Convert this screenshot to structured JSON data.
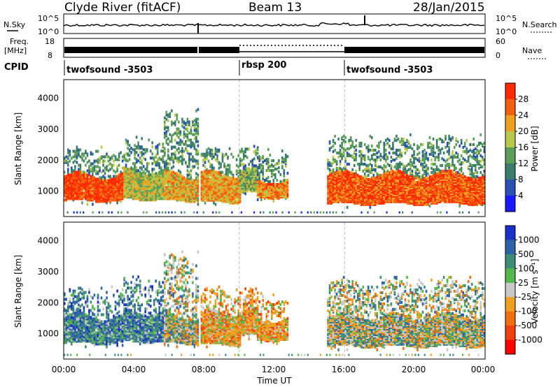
{
  "header": {
    "station": "Clyde River (fitACF)",
    "beam": "Beam 13",
    "date": "28/Jan/2015"
  },
  "noise_panel": {
    "left_label": "N.Sky",
    "right_label": "N.Search",
    "left_ticks": [
      "10^5",
      "10^0"
    ],
    "right_ticks": [
      "10^5",
      "10^0"
    ]
  },
  "freq_panel": {
    "left_label_1": "Freq.",
    "left_label_2": "[MHz]",
    "left_ticks": [
      "18",
      "8"
    ],
    "right_ticks": [
      "60",
      "0"
    ],
    "right_label": "Nave"
  },
  "cpid": {
    "label": "CPID",
    "segments": [
      {
        "name": "twofsound -3503",
        "start_h": 0,
        "end_h": 10
      },
      {
        "name": "rbsp 200",
        "start_h": 10,
        "end_h": 16
      },
      {
        "name": "twofsound -3503",
        "start_h": 16,
        "end_h": 24
      }
    ]
  },
  "chart_data": [
    {
      "type": "heatmap",
      "title": "",
      "ylabel": "Slant Range [km]",
      "yticks": [
        "1000",
        "2000",
        "3000",
        "4000"
      ],
      "ylim": [
        180,
        4600
      ],
      "xlim": [
        0,
        24
      ],
      "colorbar": {
        "label": "Power [dB]",
        "ticks": [
          "4",
          "8",
          "12",
          "16",
          "20",
          "24",
          "28"
        ],
        "colors": [
          "#1a1aff",
          "#2a52b5",
          "#3a7d6a",
          "#5a9e5a",
          "#b8c84a",
          "#f0a020",
          "#f06010",
          "#ff2a00"
        ]
      },
      "scatter_regions": [
        {
          "start_h": 0.0,
          "end_h": 3.4,
          "core_km": [
            650,
            1450
          ],
          "halo_km": [
            1450,
            2200
          ],
          "level": 0.9
        },
        {
          "start_h": 3.4,
          "end_h": 5.7,
          "core_km": [
            700,
            1600
          ],
          "halo_km": [
            1600,
            2500
          ],
          "level": 0.55
        },
        {
          "start_h": 5.7,
          "end_h": 7.6,
          "core_km": [
            650,
            1500
          ],
          "halo_km": [
            1500,
            3400
          ],
          "level": 0.65
        },
        {
          "start_h": 7.8,
          "end_h": 10.0,
          "core_km": [
            600,
            1500
          ],
          "halo_km": [
            1500,
            2200
          ],
          "level": 0.7
        },
        {
          "start_h": 10.0,
          "end_h": 11.0,
          "core_km": [
            900,
            1600
          ],
          "halo_km": [
            1600,
            2300
          ],
          "level": 0.5
        },
        {
          "start_h": 11.0,
          "end_h": 12.7,
          "core_km": [
            750,
            1300
          ],
          "halo_km": [
            1300,
            2100
          ],
          "level": 0.75
        },
        {
          "start_h": 15.0,
          "end_h": 24.0,
          "core_km": [
            550,
            1500
          ],
          "halo_km": [
            1500,
            2600
          ],
          "level": 0.85
        }
      ]
    },
    {
      "type": "heatmap",
      "title": "",
      "xlabel": "Time UT",
      "ylabel": "Slant Range [km]",
      "yticks": [
        "1000",
        "2000",
        "3000",
        "4000"
      ],
      "xticks": [
        "00:00",
        "04:00",
        "08:00",
        "12:00",
        "16:00",
        "20:00",
        "00:00"
      ],
      "ylim": [
        180,
        4600
      ],
      "xlim": [
        0,
        24
      ],
      "colorbar": {
        "label": "Velocity [m s⁻¹]",
        "ticks": [
          "1000",
          "500",
          "100",
          "25",
          "-25",
          "-100",
          "-500",
          "-1000"
        ],
        "colors": [
          "#1a30c8",
          "#2f63a8",
          "#3f8c78",
          "#55b84a",
          "#c8c8c8",
          "#f0a020",
          "#f07010",
          "#f04010",
          "#ff0000"
        ]
      },
      "scatter_regions": [
        {
          "start_h": 0.0,
          "end_h": 3.4,
          "core_km": [
            650,
            1500
          ],
          "halo_km": [
            1500,
            2300
          ],
          "bias": "towards"
        },
        {
          "start_h": 3.4,
          "end_h": 5.7,
          "core_km": [
            700,
            1650
          ],
          "halo_km": [
            1650,
            2600
          ],
          "bias": "towards"
        },
        {
          "start_h": 5.7,
          "end_h": 7.6,
          "core_km": [
            650,
            1500
          ],
          "halo_km": [
            1500,
            3400
          ],
          "bias": "mixed"
        },
        {
          "start_h": 7.8,
          "end_h": 10.0,
          "core_km": [
            600,
            1600
          ],
          "halo_km": [
            1600,
            2300
          ],
          "bias": "away"
        },
        {
          "start_h": 10.0,
          "end_h": 11.0,
          "core_km": [
            900,
            1650
          ],
          "halo_km": [
            1650,
            2300
          ],
          "bias": "away"
        },
        {
          "start_h": 11.0,
          "end_h": 12.7,
          "core_km": [
            750,
            1400
          ],
          "halo_km": [
            1400,
            2100
          ],
          "bias": "away"
        },
        {
          "start_h": 15.0,
          "end_h": 24.0,
          "core_km": [
            550,
            1500
          ],
          "halo_km": [
            1500,
            2600
          ],
          "bias": "mixed"
        }
      ]
    }
  ]
}
